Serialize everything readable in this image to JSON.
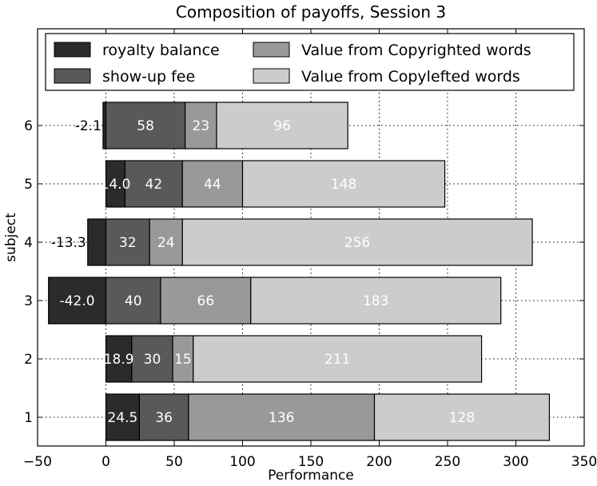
{
  "chart_data": {
    "type": "bar",
    "orientation": "horizontal",
    "stacked": true,
    "title": "Composition of payoffs, Session 3",
    "xlabel": "Performance",
    "ylabel": "subject",
    "xlim": [
      -50,
      350
    ],
    "xticks": [
      "−50",
      "0",
      "50",
      "100",
      "150",
      "200",
      "250",
      "300",
      "350"
    ],
    "xtick_values": [
      -50,
      0,
      50,
      100,
      150,
      200,
      250,
      300,
      350
    ],
    "categories": [
      "1",
      "2",
      "3",
      "4",
      "5",
      "6"
    ],
    "grid": true,
    "legend_position": "top",
    "series": [
      {
        "name": "royalty balance",
        "color": "#2b2b2b",
        "label_color": "#ffffff",
        "values": [
          24.5,
          18.9,
          -42.0,
          -13.3,
          14.0,
          -2.1
        ],
        "labels": [
          "24.5",
          "18.9",
          "-42.0",
          "-13.3",
          "14.0",
          "-2.1"
        ]
      },
      {
        "name": "show-up fee",
        "color": "#595959",
        "label_color": "#ffffff",
        "values": [
          36,
          30,
          40,
          32,
          42,
          58
        ],
        "labels": [
          "36",
          "30",
          "40",
          "32",
          "42",
          "58"
        ]
      },
      {
        "name": "Value from Copyrighted words",
        "color": "#999999",
        "label_color": "#ffffff",
        "values": [
          136,
          15,
          66,
          24,
          44,
          23
        ],
        "labels": [
          "136",
          "15",
          "66",
          "24",
          "44",
          "23"
        ]
      },
      {
        "name": "Value from Copylefted words",
        "color": "#cccccc",
        "label_color": "#ffffff",
        "values": [
          128,
          211,
          183,
          256,
          148,
          96
        ],
        "labels": [
          "128",
          "211",
          "183",
          "256",
          "148",
          "96"
        ]
      }
    ]
  }
}
